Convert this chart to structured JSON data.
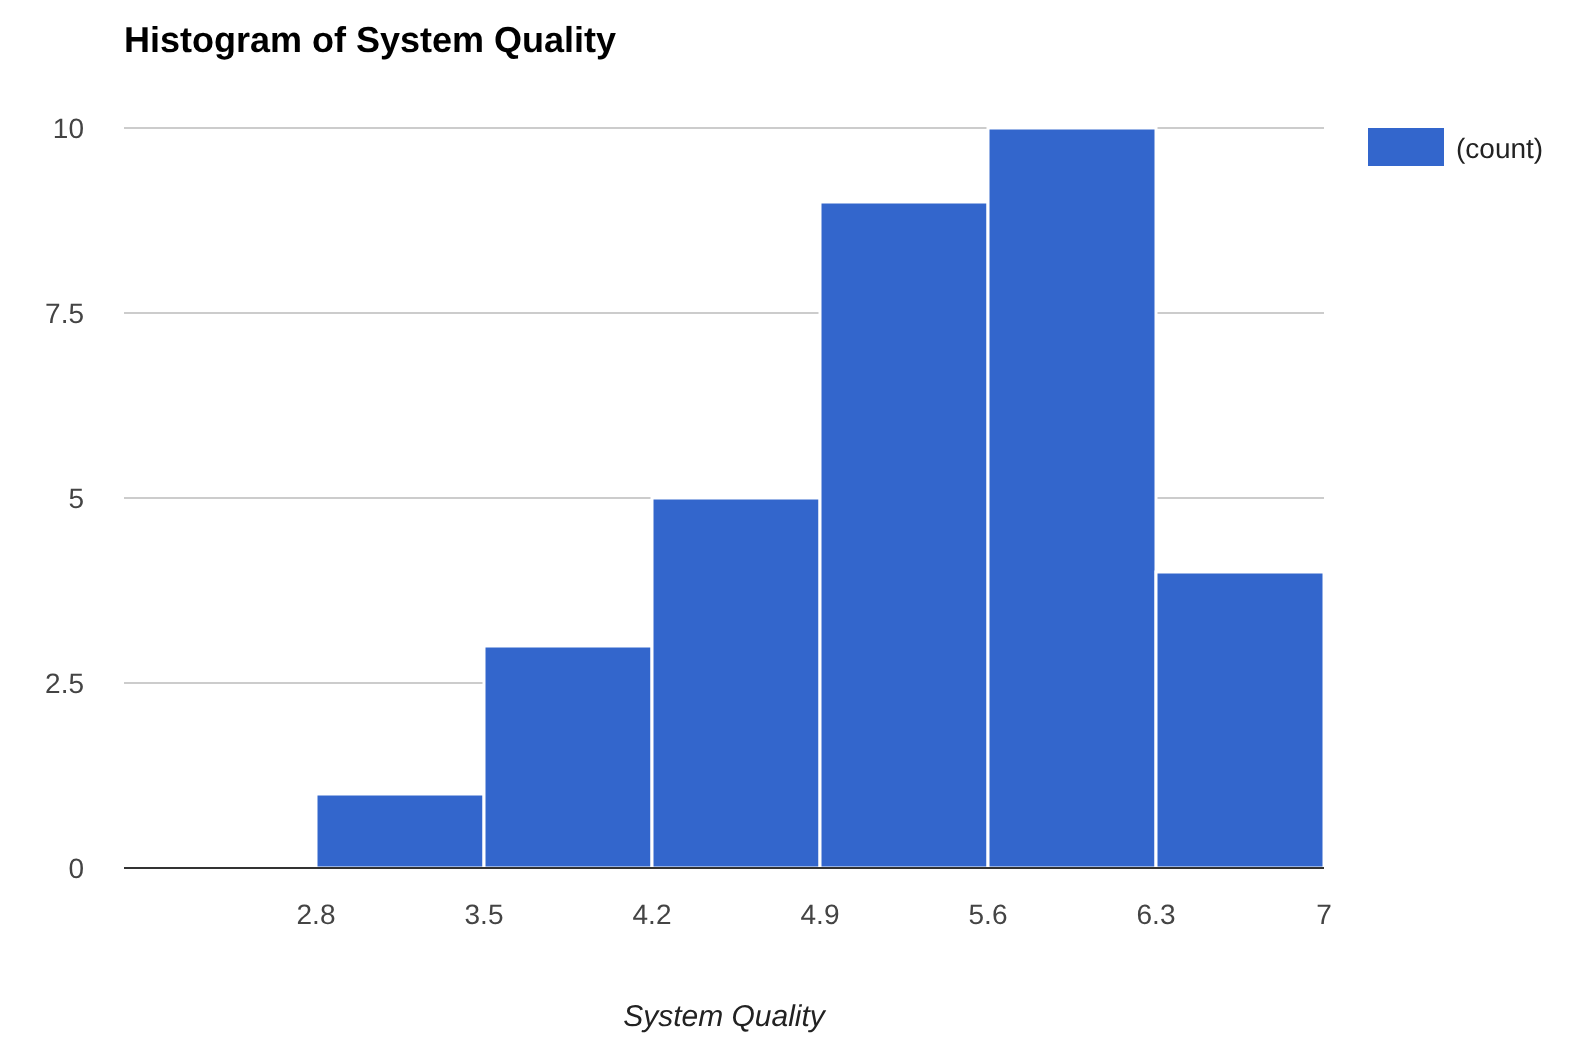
{
  "chart_data": {
    "type": "histogram",
    "title": "Histogram of System Quality",
    "xlabel": "System Quality",
    "bins": [
      2.8,
      3.5,
      4.2,
      4.9,
      5.6,
      6.3,
      7
    ],
    "series": [
      {
        "name": "(count)",
        "color": "#3366cc",
        "values": [
          1,
          3,
          5,
          9,
          10,
          4
        ]
      }
    ],
    "xlim": [
      2,
      7
    ],
    "xticks": [
      2.8,
      3.5,
      4.2,
      4.9,
      5.6,
      6.3,
      7
    ],
    "ylim": [
      0,
      10
    ],
    "yticks": [
      0,
      2.5,
      5,
      7.5,
      10
    ],
    "grid": "y",
    "legend": "right"
  }
}
